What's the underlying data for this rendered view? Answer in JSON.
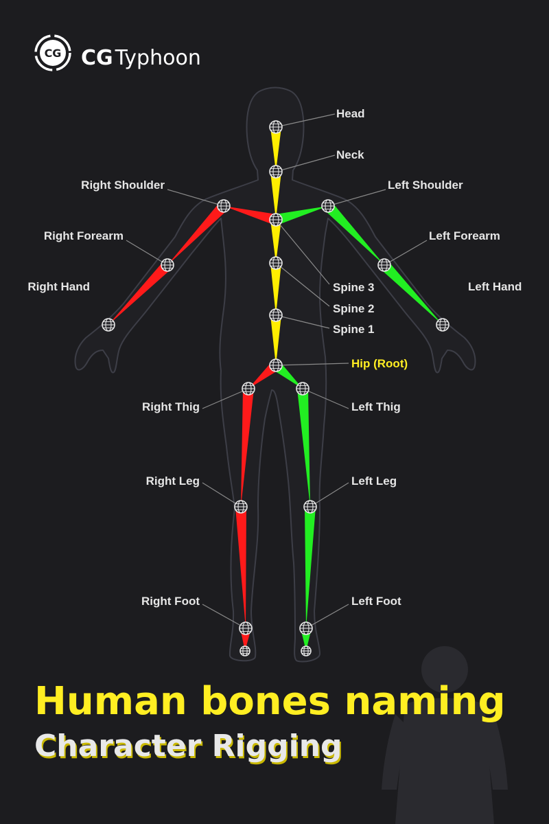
{
  "brand": {
    "logo_mark": "CG",
    "name_bold": "CG",
    "name_light": "Typhoon"
  },
  "colors": {
    "background": "#1c1c1f",
    "silhouette_fill": "#202024",
    "silhouette_stroke": "#3d3e47",
    "center_bones": "#ffee00",
    "right_side_bones": "#ff1a1a",
    "left_side_bones": "#22ee22",
    "label_text": "#e6e6e6",
    "root_label": "#ffee22",
    "title": "#ffee22",
    "subtitle": "#e8e8e8",
    "leader_line": "#8a8a8a"
  },
  "joints": {
    "head": "Head",
    "neck": "Neck",
    "spine3": "Spine 3",
    "spine2": "Spine 2",
    "spine1": "Spine 1",
    "hip": "Hip (Root)",
    "r_shoulder": "Right Shoulder",
    "r_forearm": "Right Forearm",
    "r_hand": "Right Hand",
    "l_shoulder": "Left Shoulder",
    "l_forearm": "Left Forearm",
    "l_hand": "Left Hand",
    "r_thigh": "Right Thig",
    "r_leg": "Right Leg",
    "r_foot": "Right Foot",
    "l_thigh": "Left Thig",
    "l_leg": "Left Leg",
    "l_foot": "Left Foot",
    "r_toe": "",
    "l_toe": ""
  },
  "icons": {
    "joint": "joint-globe-icon",
    "logo": "typhoon-swirl-icon",
    "figure": "person-silhouette-icon"
  },
  "title": "Human bones naming",
  "subtitle": "Character Rigging"
}
